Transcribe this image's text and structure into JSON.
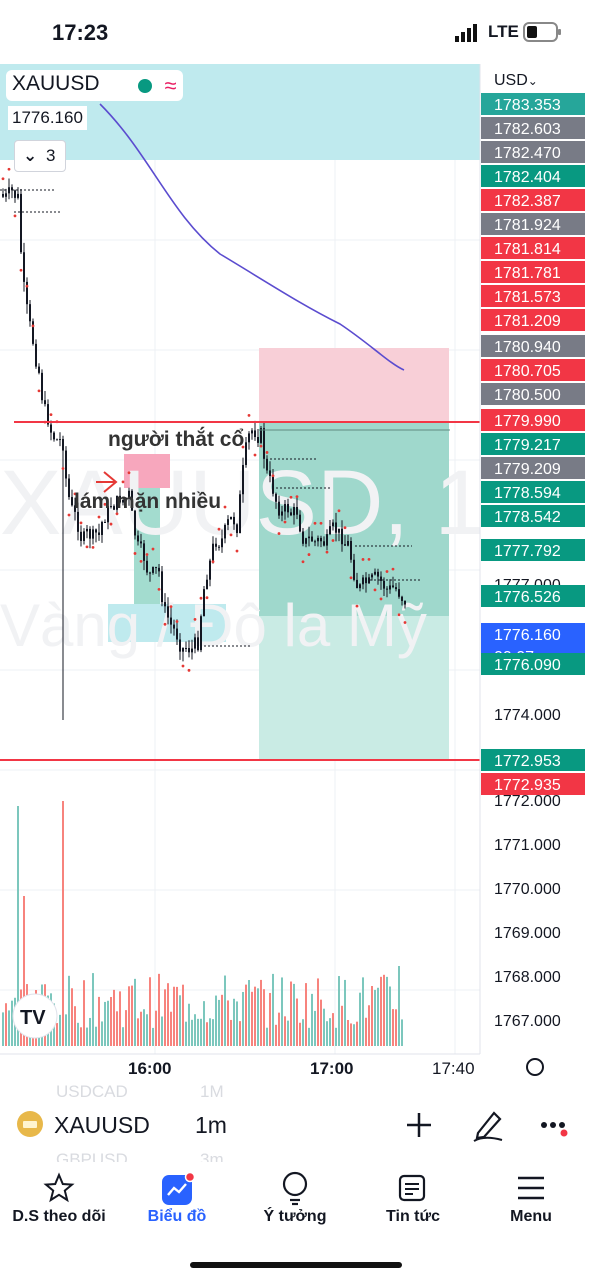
{
  "status": {
    "time": "17:23",
    "network": "LTE"
  },
  "chart": {
    "symbol": "XAUUSD",
    "last_price": "1776.160",
    "indicator_count": "3",
    "currency": "USD",
    "watermark_symbol": "XAUUSD, 1",
    "watermark_name": "Vàng / Đô la Mỹ",
    "annotations": [
      "người thắt cổ",
      "lám mặn nhiều"
    ],
    "price_scale_labels": [
      {
        "price": "1783.353",
        "color": "#26a69a"
      },
      {
        "price": "1782.603",
        "color": "#787b86"
      },
      {
        "price": "1782.470",
        "color": "#787b86"
      },
      {
        "price": "1782.404",
        "color": "#089981"
      },
      {
        "price": "1782.387",
        "color": "#f23645"
      },
      {
        "price": "1781.924",
        "color": "#787b86"
      },
      {
        "price": "1781.814",
        "color": "#f23645"
      },
      {
        "price": "1781.781",
        "color": "#f23645"
      },
      {
        "price": "1781.573",
        "color": "#f23645"
      },
      {
        "price": "1781.209",
        "color": "#f23645"
      },
      {
        "price": "1780.940",
        "color": "#787b86"
      },
      {
        "price": "1780.705",
        "color": "#f23645"
      },
      {
        "price": "1780.500",
        "color": "#787b86"
      },
      {
        "price": "1779.990",
        "color": "#f23645"
      },
      {
        "price": "1779.217",
        "color": "#089981"
      },
      {
        "price": "1779.209",
        "color": "#787b86"
      },
      {
        "price": "1778.594",
        "color": "#089981"
      },
      {
        "price": "1778.542",
        "color": "#089981"
      },
      {
        "price": "1777.792",
        "color": "#089981"
      },
      {
        "price": "1776.526",
        "color": "#089981"
      },
      {
        "price": "1776.160",
        "color": "#2962ff",
        "countdown": "00:07"
      },
      {
        "price": "1776.090",
        "color": "#089981"
      },
      {
        "price": "1772.953",
        "color": "#089981"
      },
      {
        "price": "1772.935",
        "color": "#f23645"
      }
    ],
    "price_axis_ticks": [
      "1777.000",
      "1774.000",
      "1772.000",
      "1771.000",
      "1770.000",
      "1769.000",
      "1768.000",
      "1767.000"
    ],
    "time_axis_ticks": [
      "16:00",
      "17:00",
      "17:40"
    ]
  },
  "toolbar": {
    "symbol": "XAUUSD",
    "interval": "1m",
    "ghost_rows": [
      {
        "symbol": "USDCAD",
        "interval": "1M"
      },
      {
        "symbol": "GBPUSD",
        "interval": "3m"
      }
    ]
  },
  "tabs": [
    {
      "label": "D.S theo dõi",
      "icon": "star-icon"
    },
    {
      "label": "Biểu đồ",
      "icon": "chart-icon"
    },
    {
      "label": "Ý tưởng",
      "icon": "lightbulb-icon"
    },
    {
      "label": "Tin tức",
      "icon": "news-icon"
    },
    {
      "label": "Menu",
      "icon": "menu-icon"
    }
  ],
  "colors": {
    "up": "#089981",
    "down": "#f23645",
    "accent": "#2962ff",
    "purple_line": "#5b4ccf"
  }
}
